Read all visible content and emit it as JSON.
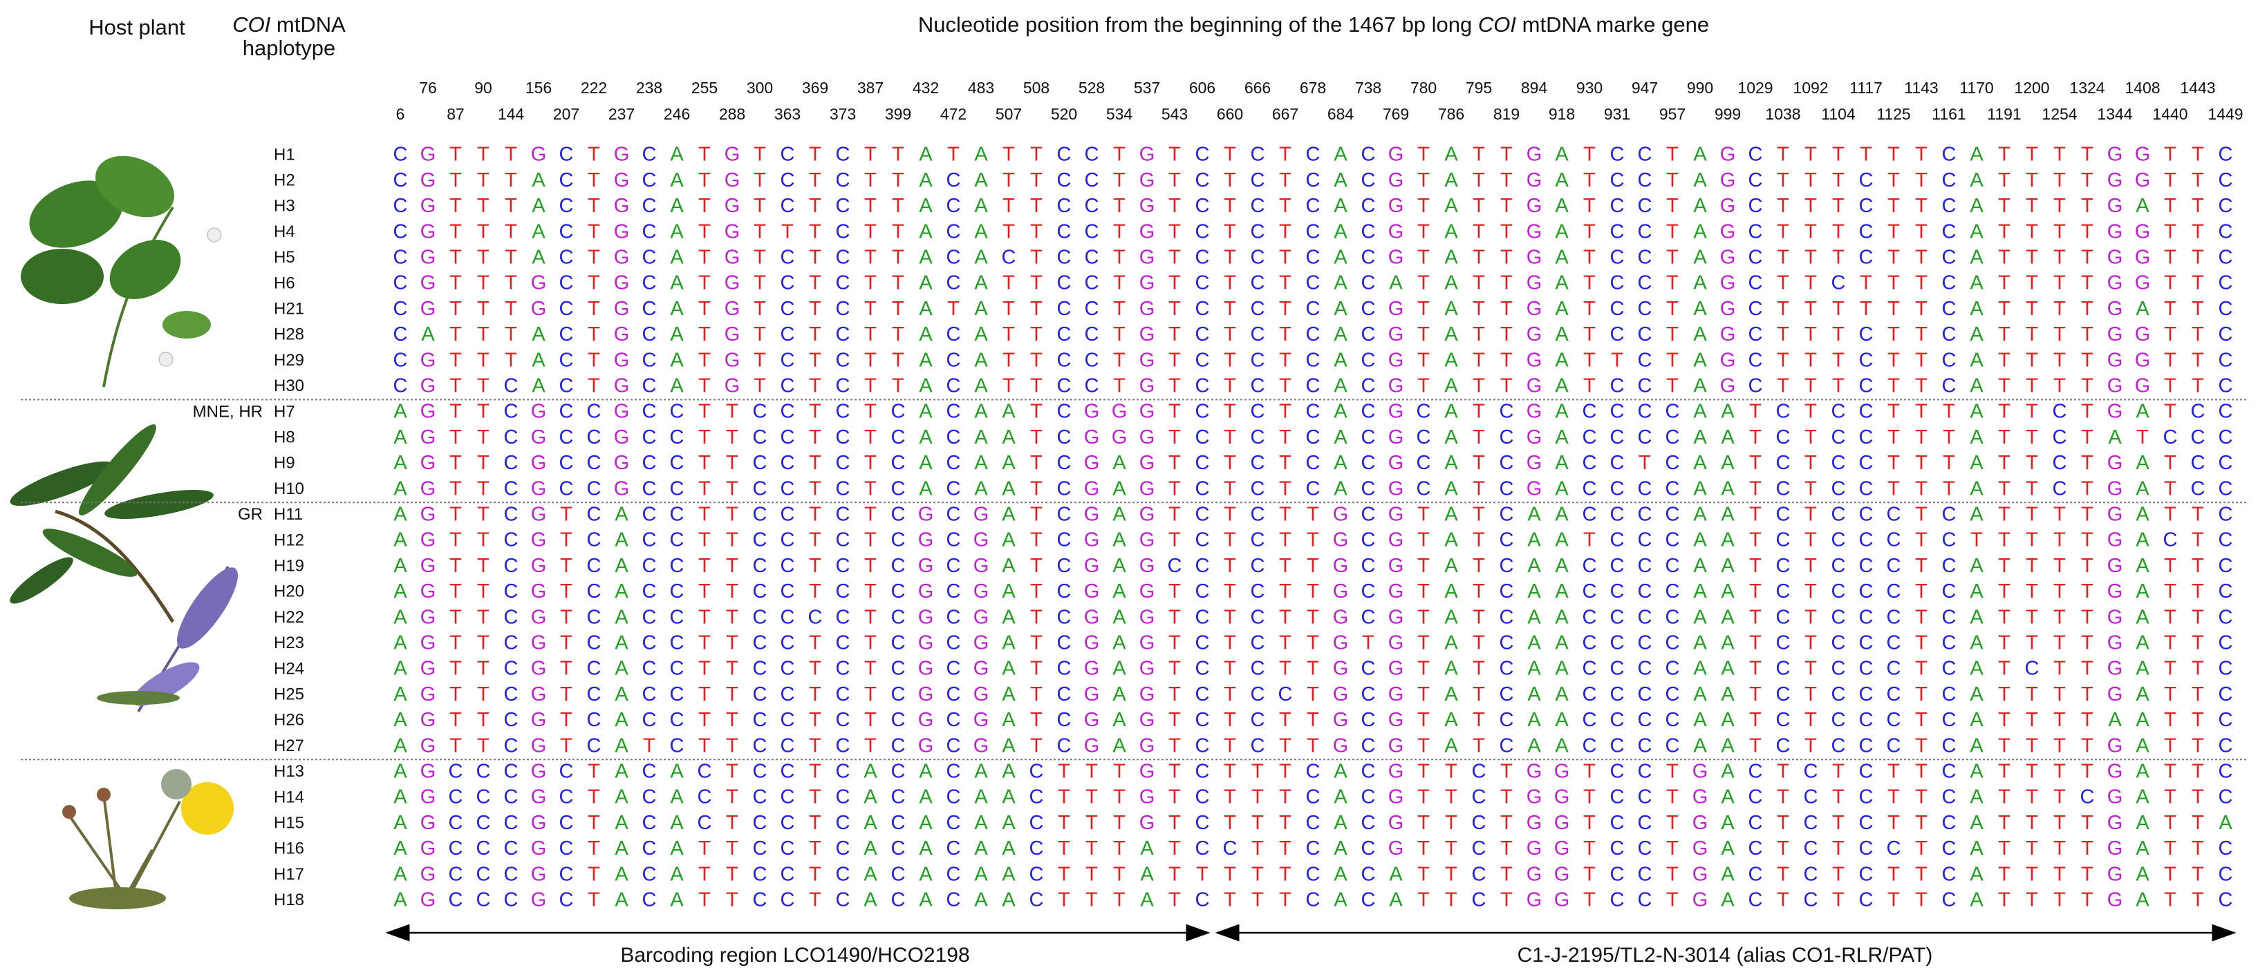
{
  "header": {
    "host_plant": "Host plant",
    "haplotype_header": [
      "COI",
      " mtDNA",
      "haplotype"
    ],
    "title": [
      "Nucleotide position from the beginning of the 1467 bp long ",
      "COI",
      " mtDNA marke gene"
    ]
  },
  "positions": [
    6,
    76,
    87,
    90,
    144,
    156,
    207,
    222,
    237,
    238,
    246,
    255,
    288,
    300,
    363,
    369,
    373,
    387,
    399,
    432,
    472,
    483,
    507,
    508,
    520,
    528,
    534,
    537,
    543,
    606,
    660,
    666,
    667,
    678,
    684,
    738,
    769,
    780,
    786,
    795,
    819,
    894,
    918,
    930,
    931,
    947,
    957,
    990,
    999,
    1029,
    1038,
    1092,
    1104,
    1117,
    1125,
    1143,
    1161,
    1170,
    1191,
    1200,
    1254,
    1324,
    1344,
    1408,
    1440,
    1443,
    1449
  ],
  "base_colors": {
    "A": "#1fa01f",
    "C": "#2020e0",
    "G": "#c020d0",
    "T": "#e02020"
  },
  "groups": [
    {
      "rows": [
        {
          "haplotype": "H1",
          "sequence": "CGTTTGCTGCATGTCTCTTATATTCCTGTCTCTCACGTATTGATCCTAGCTTTTTTCATTTTGGTTC"
        },
        {
          "haplotype": "H2",
          "sequence": "CGTTTACTGCATGTCTCTTACATTCCTGTCTCTCACGTATTGATCCTAGCTTTCTTCATTTTGGTTC"
        },
        {
          "haplotype": "H3",
          "sequence": "CGTTTACTGCATGTCTCTTACATTCCTGTCTCTCACGTATTGATCCTAGCTTTCTTCATTTTGATTC"
        },
        {
          "haplotype": "H4",
          "sequence": "CGTTTACTGCATGTTTCTTACATTCCTGTCTCTCACGTATTGATCCTAGCTTTCTTCATTTTGGTTC"
        },
        {
          "haplotype": "H5",
          "sequence": "CGTTTACTGCATGTCTCTTACACTCCTGTCTCTCACGTATTGATCCTAGCTTTCTTCATTTTGGTTC"
        },
        {
          "haplotype": "H6",
          "sequence": "CGTTTGCTGCATGTCTCTTACATTCCTGTCTCTCACATATTGATCCTAGCTTCTTTCATTTTGGTTC"
        },
        {
          "haplotype": "H21",
          "sequence": "CGTTTGCTGCATGTCTCTTATATTCCTGTCTCTCACGTATTGATCCTAGCTTTTTTCATTTTGATTC"
        },
        {
          "haplotype": "H28",
          "sequence": "CATTTACTGCATGTCTCTTACATTCCTGTCTCTCACGTATTGATCCTAGCTTTCTTCATTTTGGTTC"
        },
        {
          "haplotype": "H29",
          "sequence": "CGTTTACTGCATGTCTCTTACATTCCTGTCTCTCACGTATTGATTCTAGCTTTCTTCATTTTGGTTC"
        },
        {
          "haplotype": "H30",
          "sequence": "CGTTCACTGCATGTCTCTTACATTCCTGTCTCTCACGTATTGATCCTAGCTTTCTTCATTTTGGTTC"
        }
      ]
    },
    {
      "label": "MNE, HR",
      "rows": [
        {
          "haplotype": "H7",
          "sequence": "AGTTCGCCGCCTTCCTCTCACAATCGGGTCTCTCACGCATCGACCCCAATCTCCTTTATTCTGATCC"
        },
        {
          "haplotype": "H8",
          "sequence": "AGTTCGCCGCCTTCCTCTCACAATCGGGTCTCTCACGCATCGACCCCAATCTCCTTTATTCTATCCC"
        },
        {
          "haplotype": "H9",
          "sequence": "AGTTCGCCGCCTTCCTCTCACAATCGAGTCTCTCACGCATCGACCTCAATCTCCTTTATTCTGATCC"
        },
        {
          "haplotype": "H10",
          "sequence": "AGTTCGCCGCCTTCCTCTCACAATCGAGTCTCTCACGCATCGACCCCAATCTCCTTTATTCTGATCC"
        }
      ]
    },
    {
      "label": "GR",
      "rows": [
        {
          "haplotype": "H11",
          "sequence": "AGTTCGTCACCTTCCTCTCGCGATCGAGTCTCTTGCGTATCAACCCCAATCTCCCTCATTTTGATTC"
        },
        {
          "haplotype": "H12",
          "sequence": "AGTTCGTCACCTTCCTCTCGCGATCGAGTCTCTTGCGTATCAATCCCAATCTCCCTCTTTTTGACTC"
        },
        {
          "haplotype": "H19",
          "sequence": "AGTTCGTCACCTTCCTCTCGCGATCGAGCCTCTTGCGTATCAACCCCAATCTCCCTCATTTTGATTC"
        },
        {
          "haplotype": "H20",
          "sequence": "AGTTCGTCACCTTCCTCTCGCGATCGAGTCTCTTGCGTATCAACCCCAATCTCCCTCATTTTGATTC"
        },
        {
          "haplotype": "H22",
          "sequence": "AGTTCGTCACCTTCCCCTCGCGATCGAGTCTCTTGCGTATCAACCCCAATCTCCCTCATTTTGATTC"
        },
        {
          "haplotype": "H23",
          "sequence": "AGTTCGTCACCTTCCTCTCGCGATCGAGTCTCTTGTGTATCAACCCCAATCTCCCTCATTTTGATTC"
        },
        {
          "haplotype": "H24",
          "sequence": "AGTTCGTCACCTTCCTCTCGCGATCGAGTCTCTTGCGTATCAACCCCAATCTCCCTCATCTTGATTC"
        },
        {
          "haplotype": "H25",
          "sequence": "AGTTCGTCACCTTCCTCTCGCGATCGAGTCTCCTGCGTATCAACCCCAATCTCCCTCATTTTGATTC"
        },
        {
          "haplotype": "H26",
          "sequence": "AGTTCGTCACCTTCCTCTCGCGATCGAGTCTCTTGCGTATCAACCCCAATCTCCCTCATTTTAATTC"
        },
        {
          "haplotype": "H27",
          "sequence": "AGTTCGTCATCTTCCTCTCGCGATCGAGTCTCTTGCGTATCAACCCCAATCTCCCTCATTTTGATTC"
        }
      ]
    },
    {
      "rows": [
        {
          "haplotype": "H13",
          "sequence": "AGCCCGCTACACTCCTCACACAACTTTGTCTTTCACGTTCTGGTCCTGACTCTCTTCATTTTGATTC"
        },
        {
          "haplotype": "H14",
          "sequence": "AGCCCGCTACACTCCTCACACAACTTTGTCTTTCACGTTCTGGTCCTGACTCTCTTCATTTCGATTC"
        },
        {
          "haplotype": "H15",
          "sequence": "AGCCCGCTACACTCCTCACACAACTTTGTCTTTCACGTTCTGGTCCTGACTCTCTTCATTTTGATTA"
        },
        {
          "haplotype": "H16",
          "sequence": "AGCCCGCTACATTCCTCACACAACTTTATCCTTCACGTTCTGGTCCTGACTCTCCTCATTTTGATTC"
        },
        {
          "haplotype": "H17",
          "sequence": "AGCCCGCTACATTCCTCACACAACTTTATTTTTCACATTCTGGTCCTGACTCTCTTCATTTTGATTC"
        },
        {
          "haplotype": "H18",
          "sequence": "AGCCCGCTACATTCCTCACACAACTTTATCTTTCACATTCTGGTCCTGACTCTCTTCATTTTGATTC"
        }
      ]
    }
  ],
  "regions": [
    "Barcoding region LCO1490/HCO2198",
    "C1-J-2195/TL2-N-3014 (alias CO1-RLR/PAT)"
  ]
}
